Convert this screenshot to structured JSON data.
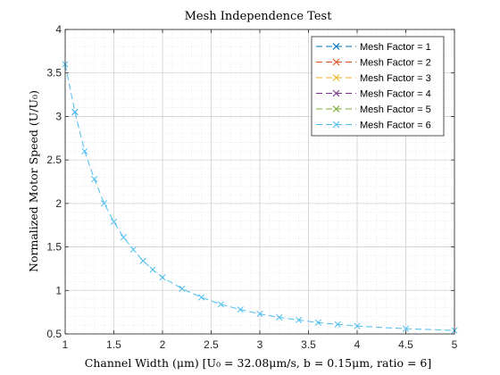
{
  "chart_data": {
    "type": "line",
    "title": "Mesh Independence Test",
    "xlabel": "Channel Width (μm) [U₀ = 32.08μm/s, b = 0.15μm, ratio = 6]",
    "ylabel": "Normalized Motor Speed (U/U₀)",
    "xlim": [
      1,
      5
    ],
    "ylim": [
      0.5,
      4
    ],
    "x_ticks": [
      "1",
      "1.5",
      "2",
      "2.5",
      "3",
      "3.5",
      "4",
      "4.5",
      "5"
    ],
    "y_ticks": [
      "0.5",
      "1",
      "1.5",
      "2",
      "2.5",
      "3",
      "3.5",
      "4"
    ],
    "grid": true,
    "minor_grid": true,
    "legend_position": "top-right",
    "series": [
      {
        "name": "Mesh Factor = 1",
        "color": "#0072BD",
        "x": [
          1.1
        ],
        "y": [
          3.05
        ]
      },
      {
        "name": "Mesh Factor = 2",
        "color": "#D95319",
        "x": [],
        "y": []
      },
      {
        "name": "Mesh Factor = 3",
        "color": "#EDB120",
        "x": [],
        "y": []
      },
      {
        "name": "Mesh Factor = 4",
        "color": "#7E2F8E",
        "x": [],
        "y": []
      },
      {
        "name": "Mesh Factor = 5",
        "color": "#77AC30",
        "x": [],
        "y": []
      },
      {
        "name": "Mesh Factor = 6",
        "color": "#4DBEEE",
        "x": [
          1.0,
          1.1,
          1.2,
          1.3,
          1.4,
          1.5,
          1.6,
          1.7,
          1.8,
          1.9,
          2.0,
          2.2,
          2.4,
          2.6,
          2.8,
          3.0,
          3.2,
          3.4,
          3.6,
          3.8,
          4.0,
          4.5,
          5.0
        ],
        "y": [
          3.6,
          3.05,
          2.6,
          2.28,
          2.0,
          1.79,
          1.61,
          1.47,
          1.34,
          1.24,
          1.15,
          1.02,
          0.92,
          0.84,
          0.78,
          0.73,
          0.69,
          0.66,
          0.63,
          0.61,
          0.59,
          0.56,
          0.54
        ]
      }
    ]
  }
}
